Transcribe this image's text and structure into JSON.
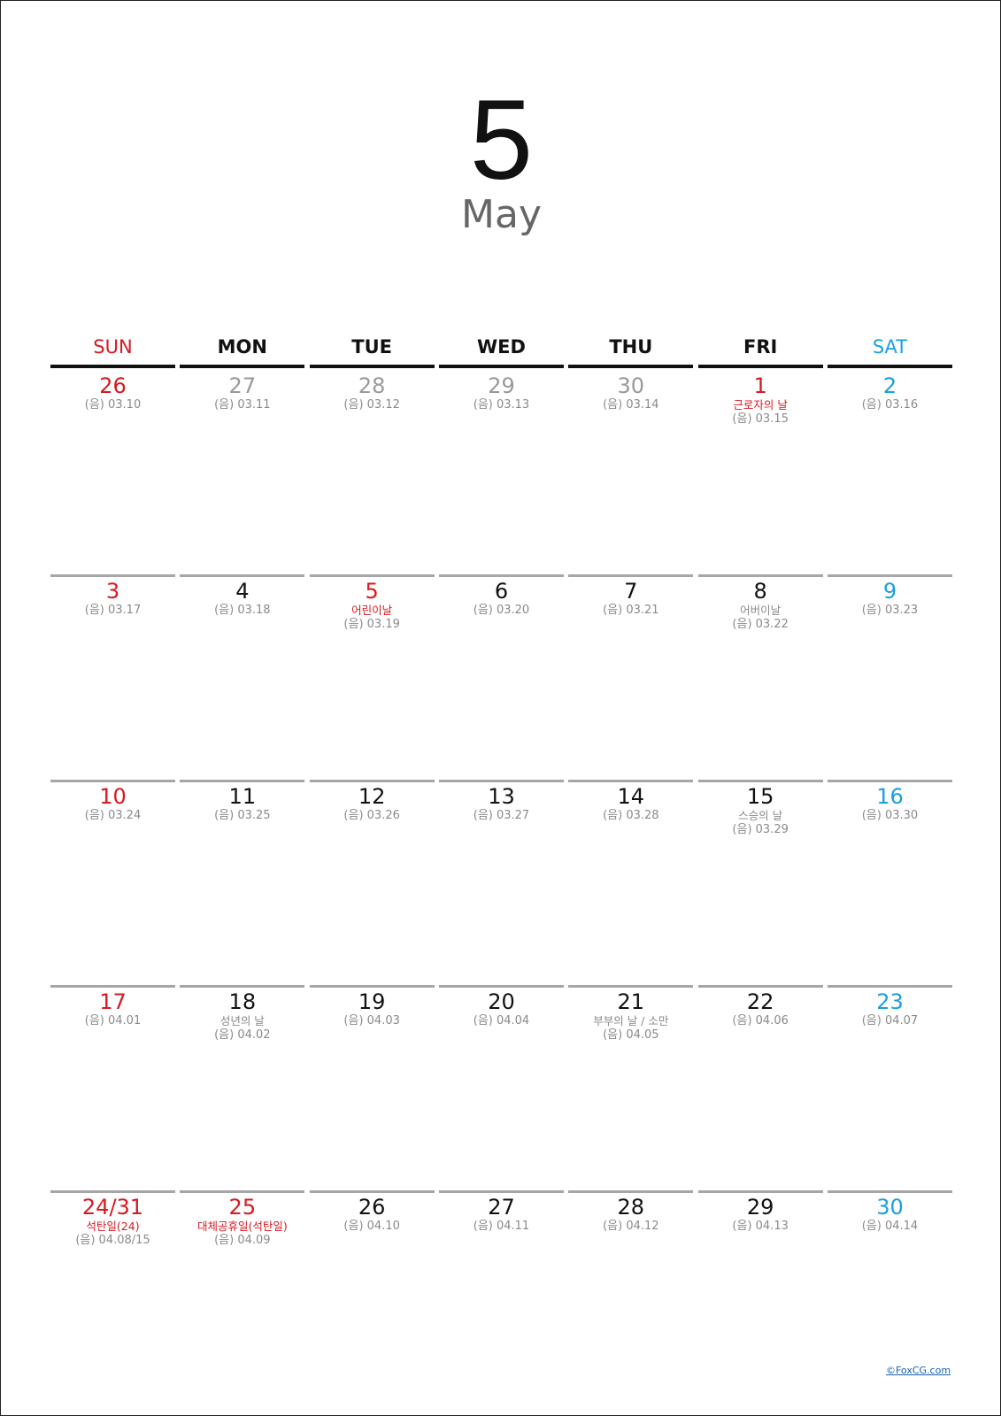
{
  "calendar": {
    "month_number": "5",
    "month_name": "May",
    "weekdays": [
      "SUN",
      "MON",
      "TUE",
      "WED",
      "THU",
      "FRI",
      "SAT"
    ],
    "weeks": [
      [
        {
          "day": "26",
          "lunar": "(음) 03.10",
          "event": "",
          "style": "sun"
        },
        {
          "day": "27",
          "lunar": "(음) 03.11",
          "event": "",
          "style": "other"
        },
        {
          "day": "28",
          "lunar": "(음) 03.12",
          "event": "",
          "style": "other"
        },
        {
          "day": "29",
          "lunar": "(음) 03.13",
          "event": "",
          "style": "other"
        },
        {
          "day": "30",
          "lunar": "(음) 03.14",
          "event": "",
          "style": "other"
        },
        {
          "day": "1",
          "lunar": "(음) 03.15",
          "event": "근로자의 날",
          "style": "hol"
        },
        {
          "day": "2",
          "lunar": "(음) 03.16",
          "event": "",
          "style": "sat"
        }
      ],
      [
        {
          "day": "3",
          "lunar": "(음) 03.17",
          "event": "",
          "style": "sun"
        },
        {
          "day": "4",
          "lunar": "(음) 03.18",
          "event": "",
          "style": "normal"
        },
        {
          "day": "5",
          "lunar": "(음) 03.19",
          "event": "어린이날",
          "style": "hol"
        },
        {
          "day": "6",
          "lunar": "(음) 03.20",
          "event": "",
          "style": "normal"
        },
        {
          "day": "7",
          "lunar": "(음) 03.21",
          "event": "",
          "style": "normal"
        },
        {
          "day": "8",
          "lunar": "(음) 03.22",
          "event": "어버이날",
          "style": "normal"
        },
        {
          "day": "9",
          "lunar": "(음) 03.23",
          "event": "",
          "style": "sat"
        }
      ],
      [
        {
          "day": "10",
          "lunar": "(음) 03.24",
          "event": "",
          "style": "sun"
        },
        {
          "day": "11",
          "lunar": "(음) 03.25",
          "event": "",
          "style": "normal"
        },
        {
          "day": "12",
          "lunar": "(음) 03.26",
          "event": "",
          "style": "normal"
        },
        {
          "day": "13",
          "lunar": "(음) 03.27",
          "event": "",
          "style": "normal"
        },
        {
          "day": "14",
          "lunar": "(음) 03.28",
          "event": "",
          "style": "normal"
        },
        {
          "day": "15",
          "lunar": "(음) 03.29",
          "event": "스승의 날",
          "style": "normal"
        },
        {
          "day": "16",
          "lunar": "(음) 03.30",
          "event": "",
          "style": "sat"
        }
      ],
      [
        {
          "day": "17",
          "lunar": "(음) 04.01",
          "event": "",
          "style": "sun"
        },
        {
          "day": "18",
          "lunar": "(음) 04.02",
          "event": "성년의 날",
          "style": "normal"
        },
        {
          "day": "19",
          "lunar": "(음) 04.03",
          "event": "",
          "style": "normal"
        },
        {
          "day": "20",
          "lunar": "(음) 04.04",
          "event": "",
          "style": "normal"
        },
        {
          "day": "21",
          "lunar": "(음) 04.05",
          "event": "부부의 날 / 소만",
          "style": "normal"
        },
        {
          "day": "22",
          "lunar": "(음) 04.06",
          "event": "",
          "style": "normal"
        },
        {
          "day": "23",
          "lunar": "(음) 04.07",
          "event": "",
          "style": "sat"
        }
      ],
      [
        {
          "day": "24/31",
          "lunar": "(음) 04.08/15",
          "event": "석탄일(24)",
          "style": "hol"
        },
        {
          "day": "25",
          "lunar": "(음) 04.09",
          "event": "대체공휴일(석탄일)",
          "style": "hol"
        },
        {
          "day": "26",
          "lunar": "(음) 04.10",
          "event": "",
          "style": "normal"
        },
        {
          "day": "27",
          "lunar": "(음) 04.11",
          "event": "",
          "style": "normal"
        },
        {
          "day": "28",
          "lunar": "(음) 04.12",
          "event": "",
          "style": "normal"
        },
        {
          "day": "29",
          "lunar": "(음) 04.13",
          "event": "",
          "style": "normal"
        },
        {
          "day": "30",
          "lunar": "(음) 04.14",
          "event": "",
          "style": "sat"
        }
      ]
    ]
  },
  "footer": {
    "credit": "©FoxCG.com"
  }
}
